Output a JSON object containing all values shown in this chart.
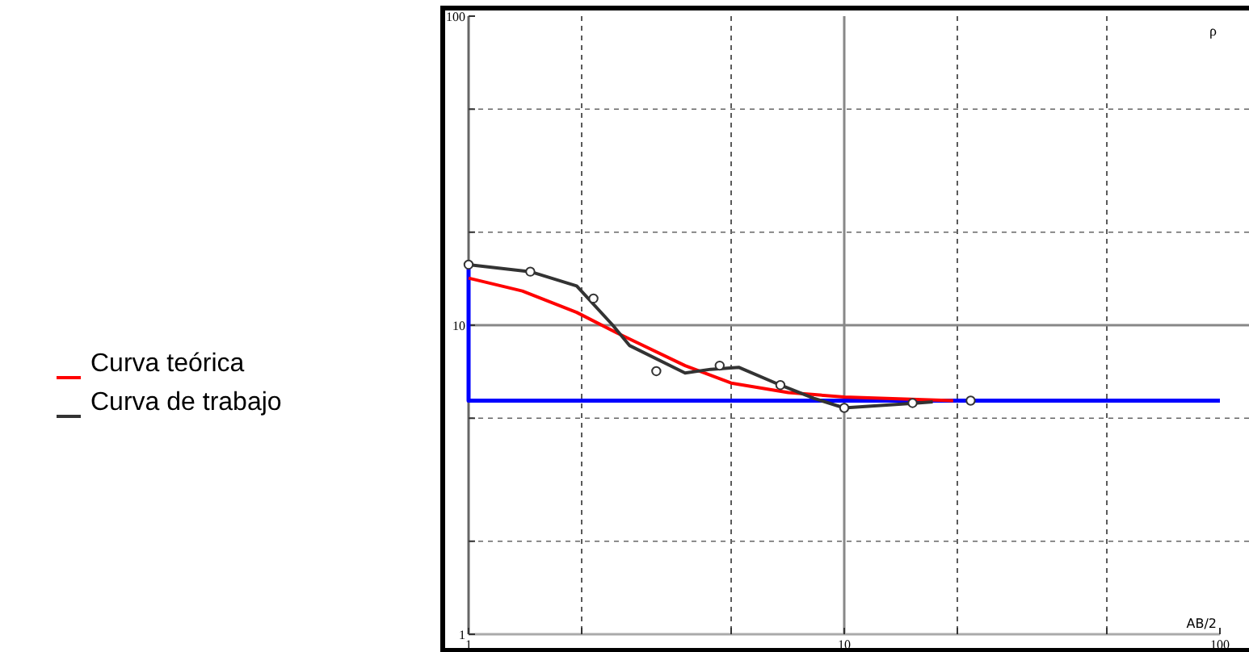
{
  "chart_data": {
    "type": "line",
    "xlabel": "AB/2",
    "ylabel": "ρ",
    "log": "xy",
    "xlim": [
      1,
      100
    ],
    "ylim": [
      1,
      100
    ],
    "xticks": [
      1,
      {
        "value": 2,
        "label": null
      },
      {
        "value": 5,
        "label": null
      },
      10,
      {
        "value": 20,
        "label": null
      },
      {
        "value": 50,
        "label": null
      },
      100
    ],
    "yticks": [
      1,
      {
        "value": 2,
        "label": null
      },
      {
        "value": 5,
        "label": null
      },
      10,
      {
        "value": 20,
        "label": null
      },
      {
        "value": 50,
        "label": null
      },
      100
    ],
    "grid": true,
    "legend": "left",
    "line_style": "solid",
    "series": [
      {
        "color": "#0000ff",
        "x": [
          1,
          1,
          100
        ],
        "values": [
          15.7,
          5.7,
          5.7
        ]
      },
      {
        "name": "Curva teórica",
        "color": "#ff0000",
        "x": [
          1,
          1.39,
          1.94,
          2.5,
          3.77,
          5,
          7.1,
          10,
          19.5
        ],
        "values": [
          14.2,
          12.9,
          11,
          9.4,
          7.4,
          6.5,
          6.05,
          5.86,
          5.7
        ]
      },
      {
        "name": "Curva de trabajo",
        "color": "#333333",
        "x": [
          1,
          1.46,
          1.94,
          2.42,
          2.68,
          3.77,
          4.41,
          5.25,
          6.76,
          8.3,
          10,
          15.6,
          17.2
        ],
        "values": [
          15.7,
          14.9,
          13.4,
          10,
          8.6,
          7,
          7.2,
          7.3,
          6.4,
          5.8,
          5.4,
          5.6,
          5.65
        ]
      },
      {
        "type": "scatter",
        "marker": "circle",
        "color": "#333333",
        "x": [
          1,
          1.46,
          2.15,
          3.16,
          4.66,
          6.76,
          10,
          15.2,
          21.7
        ],
        "values": [
          15.7,
          14.9,
          12.2,
          7.1,
          7.4,
          6.4,
          5.4,
          5.6,
          5.7
        ]
      }
    ]
  }
}
